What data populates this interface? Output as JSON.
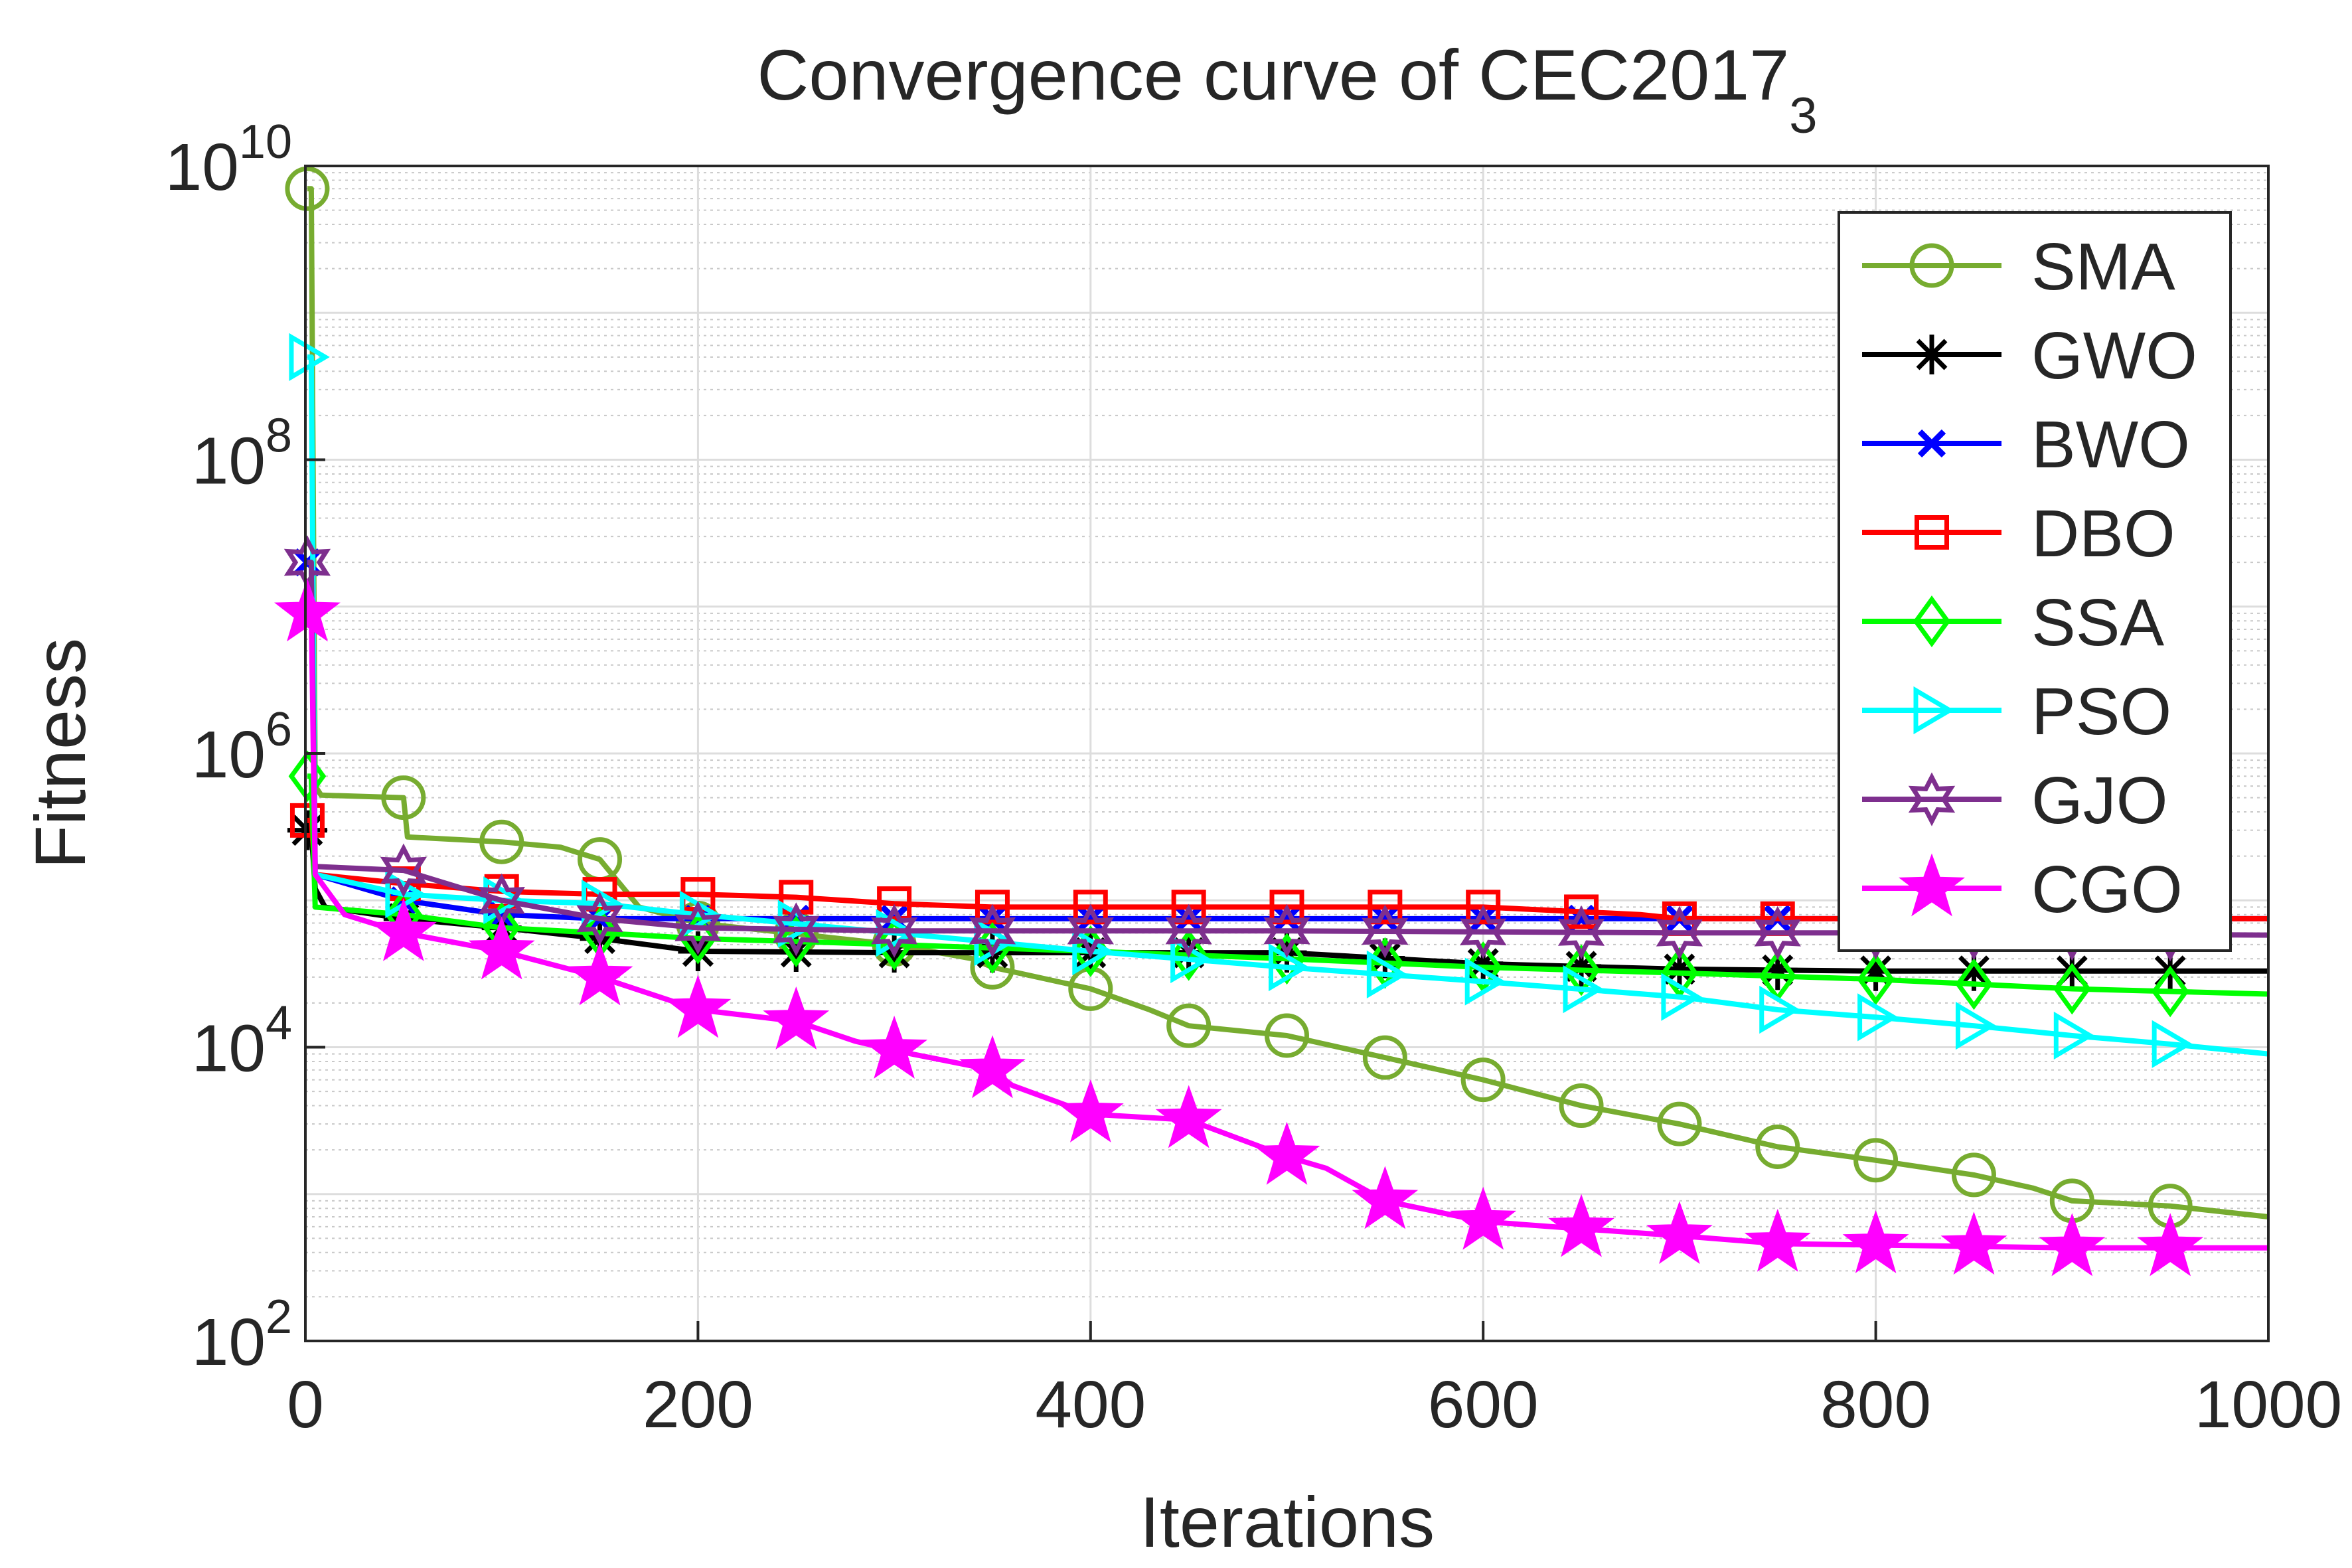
{
  "chart_data": {
    "type": "line",
    "title": "Convergence curve of CEC2017",
    "title_subscript": "3",
    "xlabel": "Iterations",
    "ylabel": "Fitness",
    "xlim": [
      0,
      1000
    ],
    "ylim": [
      100,
      10000000000
    ],
    "yscale": "log",
    "grid": true,
    "minor_grid": true,
    "legend_position": "top-right",
    "x_ticks": [
      "0",
      "200",
      "400",
      "600",
      "800",
      "1000"
    ],
    "y_ticks": [
      {
        "base": "10",
        "exp": "2"
      },
      {
        "base": "10",
        "exp": "4"
      },
      {
        "base": "10",
        "exp": "6"
      },
      {
        "base": "10",
        "exp": "8"
      },
      {
        "base": "10",
        "exp": "10"
      }
    ],
    "series": [
      {
        "name": "SMA",
        "color": "#77AC30",
        "marker": "circle",
        "x": [
          1,
          3,
          5,
          8,
          50,
          52,
          100,
          130,
          150,
          170,
          200,
          300,
          340,
          350,
          400,
          430,
          450,
          500,
          550,
          600,
          650,
          700,
          750,
          800,
          850,
          880,
          900,
          950,
          1000
        ],
        "y": [
          7000000000,
          7000000000,
          600000,
          520000,
          500000,
          270000,
          250000,
          230000,
          190000,
          90000,
          70000,
          50000,
          40000,
          35000,
          25000,
          18000,
          14000,
          12000,
          8500,
          6000,
          4000,
          3000,
          2100,
          1700,
          1350,
          1100,
          900,
          830,
          700
        ]
      },
      {
        "name": "GWO",
        "color": "#000000",
        "marker": "star",
        "x": [
          1,
          3,
          5,
          10,
          50,
          100,
          150,
          200,
          300,
          400,
          500,
          600,
          700,
          800,
          900,
          1000
        ],
        "y": [
          300000,
          300000,
          120000,
          90000,
          75000,
          65000,
          55000,
          45000,
          44000,
          44000,
          44000,
          37000,
          34000,
          33000,
          33000,
          33000
        ]
      },
      {
        "name": "BWO",
        "color": "#0000FF",
        "marker": "x",
        "x": [
          1,
          3,
          5,
          50,
          100,
          150,
          200,
          300,
          1000
        ],
        "y": [
          20000000,
          20000000,
          150000,
          100000,
          80000,
          75000,
          75000,
          75000,
          75000
        ]
      },
      {
        "name": "DBO",
        "color": "#FF0000",
        "marker": "square",
        "x": [
          1,
          3,
          5,
          50,
          100,
          150,
          200,
          250,
          300,
          350,
          600,
          680,
          700,
          1000
        ],
        "y": [
          350000,
          350000,
          150000,
          130000,
          115000,
          110000,
          110000,
          105000,
          95000,
          90000,
          90000,
          80000,
          75000,
          75000
        ]
      },
      {
        "name": "SSA",
        "color": "#00FF00",
        "marker": "diamond",
        "x": [
          1,
          3,
          5,
          50,
          100,
          150,
          200,
          300,
          400,
          500,
          600,
          700,
          800,
          900,
          1000
        ],
        "y": [
          700000,
          700000,
          90000,
          80000,
          65000,
          60000,
          55000,
          50000,
          45000,
          40000,
          35000,
          32000,
          29000,
          25000,
          23000
        ]
      },
      {
        "name": "PSO",
        "color": "#00FFFF",
        "marker": "triangle-right",
        "x": [
          1,
          3,
          5,
          50,
          100,
          150,
          200,
          300,
          400,
          500,
          600,
          700,
          750,
          800,
          850,
          900,
          950,
          1000
        ],
        "y": [
          500000000,
          500000000,
          150000,
          110000,
          100000,
          95000,
          80000,
          60000,
          45000,
          35000,
          28000,
          22000,
          18000,
          16000,
          14000,
          12000,
          10500,
          9000
        ]
      },
      {
        "name": "GJO",
        "color": "#7E2F8E",
        "marker": "hexagram",
        "x": [
          1,
          3,
          5,
          50,
          100,
          150,
          200,
          300,
          500,
          700,
          800,
          1000
        ],
        "y": [
          20000000,
          20000000,
          170000,
          160000,
          100000,
          75000,
          65000,
          62000,
          62000,
          60000,
          60000,
          58000
        ]
      },
      {
        "name": "CGO",
        "color": "#FF00FF",
        "marker": "pentagram",
        "x": [
          1,
          3,
          5,
          20,
          50,
          100,
          150,
          200,
          250,
          280,
          300,
          350,
          360,
          400,
          450,
          500,
          520,
          550,
          600,
          650,
          700,
          750,
          800,
          850,
          900,
          950,
          1000
        ],
        "y": [
          9000000,
          9000000,
          150000,
          80000,
          60000,
          45000,
          30000,
          18000,
          15000,
          11000,
          9500,
          7000,
          5500,
          3500,
          3200,
          1800,
          1500,
          900,
          650,
          580,
          520,
          460,
          450,
          440,
          430,
          430,
          430
        ]
      }
    ]
  }
}
